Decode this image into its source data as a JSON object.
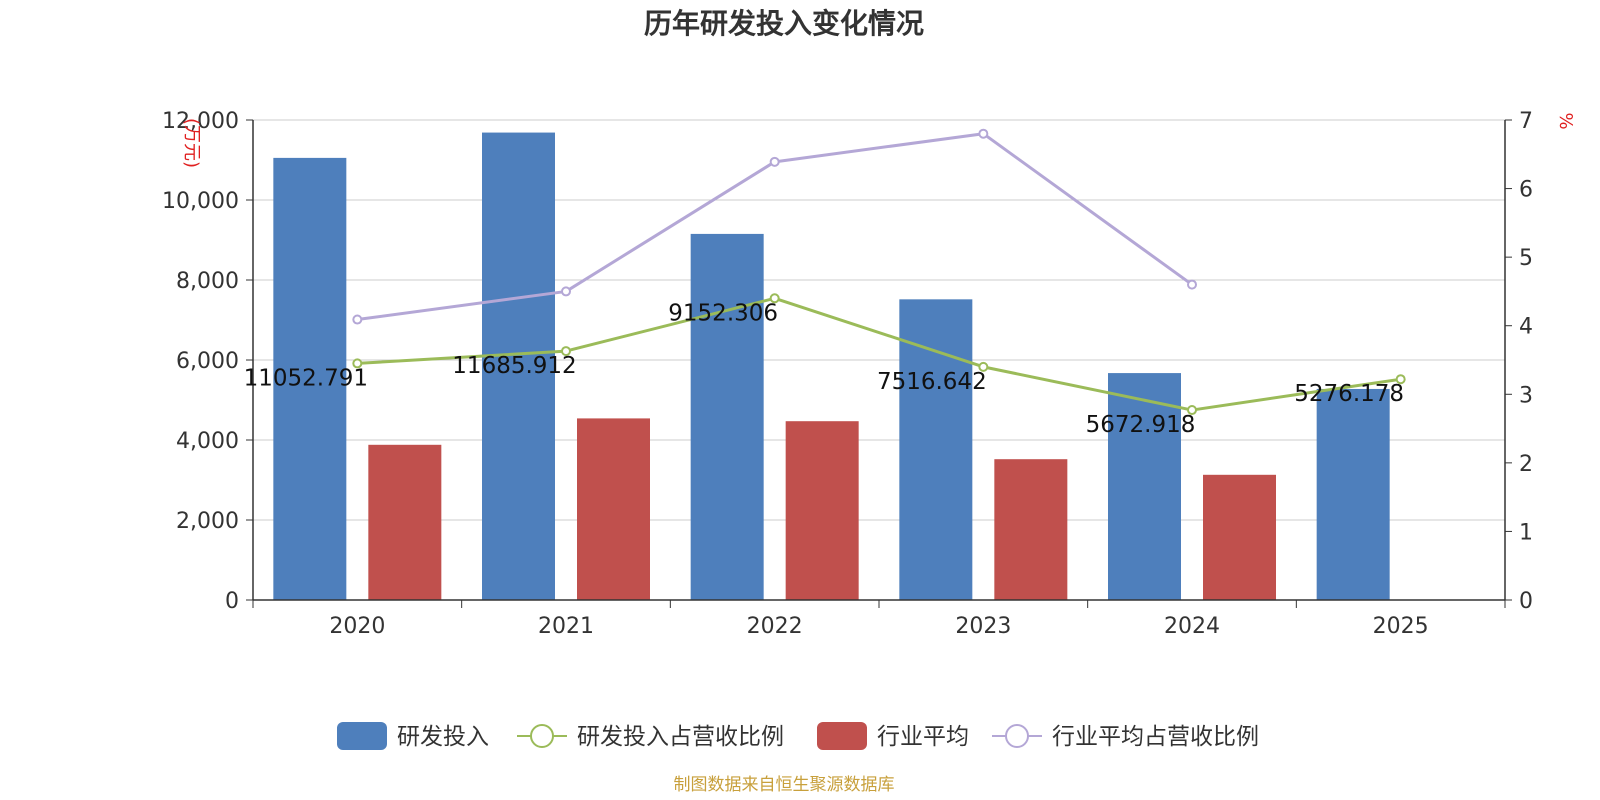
{
  "colors": {
    "rd": "#4e7fbc",
    "industry": "#c0504d",
    "rd_ratio": "#9bbb59",
    "industry_ratio": "#b4a7d6",
    "axis": "#333333",
    "grid": "#cccccc",
    "unit": "#e02020",
    "source": "#c8a03c"
  },
  "chart_data": {
    "type": "bar",
    "title": "历年研发投入变化情况",
    "categories": [
      "2020",
      "2021",
      "2022",
      "2023",
      "2024",
      "2025"
    ],
    "ylabel_left": "(万元)",
    "ylabel_right": "%",
    "ylim_left": [
      0,
      12000
    ],
    "ylim_right": [
      0,
      7
    ],
    "yticks_left": [
      "0",
      "2,000",
      "4,000",
      "6,000",
      "8,000",
      "10,000",
      "12,000"
    ],
    "yticks_right": [
      "0",
      "1",
      "2",
      "3",
      "4",
      "5",
      "6",
      "7"
    ],
    "series": [
      {
        "name": "研发投入",
        "kind": "bar",
        "axis": "left",
        "values": [
          11052.791,
          11685.912,
          9152.306,
          7516.642,
          5672.918,
          5276.178
        ],
        "labels": [
          "11052.791",
          "11685.912",
          "9152.306",
          "7516.642",
          "5672.918",
          "5276.178"
        ]
      },
      {
        "name": "研发投入占营收比例",
        "kind": "line",
        "axis": "right",
        "values": [
          3.45,
          3.63,
          4.4,
          3.4,
          2.77,
          3.22
        ]
      },
      {
        "name": "行业平均",
        "kind": "bar",
        "axis": "left",
        "values": [
          3880,
          4540,
          4470,
          3520,
          3130,
          null
        ]
      },
      {
        "name": "行业平均占营收比例",
        "kind": "line",
        "axis": "right",
        "values": [
          4.09,
          4.5,
          6.39,
          6.8,
          4.6,
          null
        ]
      }
    ],
    "legend": [
      "研发投入",
      "研发投入占营收比例",
      "行业平均",
      "行业平均占营收比例"
    ],
    "source": "制图数据来自恒生聚源数据库"
  }
}
